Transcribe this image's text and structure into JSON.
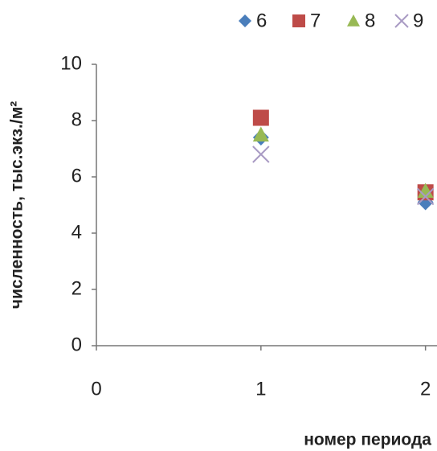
{
  "chart_data": {
    "type": "scatter",
    "x_label": "номер периода",
    "y_label": "численность, тыс.экз./м²",
    "xlim": [
      0,
      2.07
    ],
    "xticks": [
      0,
      1,
      2
    ],
    "ylim": [
      0,
      10
    ],
    "yticks": [
      0,
      2,
      4,
      6,
      8,
      10
    ],
    "series": [
      {
        "name": "6",
        "color": "#4a7ebb",
        "marker": "diamond",
        "x": [
          1,
          2
        ],
        "values": [
          7.4,
          5.1
        ]
      },
      {
        "name": "7",
        "color": "#be4b48",
        "marker": "square",
        "x": [
          1,
          2
        ],
        "values": [
          8.1,
          5.45
        ]
      },
      {
        "name": "8",
        "color": "#98b954",
        "marker": "triangle",
        "x": [
          1,
          2
        ],
        "values": [
          7.5,
          5.5
        ]
      },
      {
        "name": "9",
        "color": "#a99bc4",
        "marker": "cross",
        "x": [
          1,
          2
        ],
        "values": [
          6.8,
          5.3
        ]
      }
    ]
  }
}
